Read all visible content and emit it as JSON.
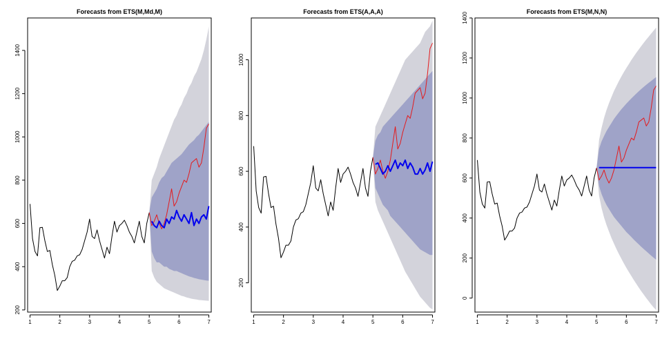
{
  "colors": {
    "history": "#000000",
    "actual": "#e41a1c",
    "forecast": "#0000ee",
    "band80": "#9fa3c8",
    "band95": "#d3d3db"
  },
  "chart_data": [
    {
      "type": "line",
      "title": "Forecasts from ETS(M,Md,M)",
      "xlim": [
        0.92,
        7.08
      ],
      "ylim": [
        190,
        1550
      ],
      "xticks": [
        1,
        2,
        3,
        4,
        5,
        6,
        7
      ],
      "yticks": [
        200,
        400,
        600,
        800,
        1000,
        1200,
        1400
      ],
      "grid": false,
      "legend": "none",
      "history": {
        "x": [
          1.0,
          1.0833,
          1.1667,
          1.25,
          1.3333,
          1.4167,
          1.5,
          1.5833,
          1.6667,
          1.75,
          1.8333,
          1.9167,
          2.0,
          2.0833,
          2.1667,
          2.25,
          2.3333,
          2.4167,
          2.5,
          2.5833,
          2.6667,
          2.75,
          2.8333,
          2.9167,
          3.0,
          3.0833,
          3.1667,
          3.25,
          3.3333,
          3.4167,
          3.5,
          3.5833,
          3.6667,
          3.75,
          3.8333,
          3.9167,
          4.0,
          4.0833,
          4.1667,
          4.25,
          4.3333,
          4.4167,
          4.5,
          4.5833,
          4.6667,
          4.75,
          4.8333,
          4.9167,
          5.0
        ],
        "y": [
          690,
          530,
          470,
          450,
          580,
          582,
          520,
          470,
          475,
          410,
          360,
          290,
          310,
          335,
          335,
          350,
          400,
          425,
          430,
          450,
          455,
          480,
          520,
          560,
          620,
          540,
          530,
          570,
          520,
          480,
          440,
          490,
          460,
          540,
          610,
          560,
          590,
          600,
          615,
          590,
          560,
          540,
          510,
          560,
          610,
          540,
          510,
          600,
          650
        ]
      },
      "actual": {
        "x": [
          5.0,
          5.0833,
          5.1667,
          5.25,
          5.3333,
          5.4167,
          5.5,
          5.5833,
          5.6667,
          5.75,
          5.8333,
          5.9167,
          6.0,
          6.0833,
          6.1667,
          6.25,
          6.3333,
          6.4167,
          6.5,
          6.5833,
          6.6667,
          6.75,
          6.8333,
          6.9167,
          7.0
        ],
        "y": [
          650,
          590,
          610,
          640,
          600,
          575,
          600,
          640,
          700,
          760,
          680,
          700,
          740,
          770,
          800,
          790,
          830,
          880,
          890,
          900,
          860,
          880,
          950,
          1040,
          1060
        ]
      },
      "forecast": {
        "x": [
          5.0833,
          5.1667,
          5.25,
          5.3333,
          5.4167,
          5.5,
          5.5833,
          5.6667,
          5.75,
          5.8333,
          5.9167,
          6.0,
          6.0833,
          6.1667,
          6.25,
          6.3333,
          6.4167,
          6.5,
          6.5833,
          6.6667,
          6.75,
          6.8333,
          6.9167,
          7.0
        ],
        "y": [
          610,
          590,
          580,
          610,
          590,
          580,
          620,
          600,
          630,
          620,
          660,
          630,
          610,
          640,
          620,
          600,
          650,
          590,
          620,
          600,
          630,
          640,
          620,
          680
        ],
        "lo80": [
          470,
          440,
          420,
          420,
          410,
          400,
          400,
          390,
          385,
          380,
          380,
          375,
          370,
          365,
          360,
          355,
          352,
          348,
          345,
          342,
          340,
          338,
          336,
          335
        ],
        "hi80": [
          720,
          740,
          760,
          790,
          810,
          820,
          840,
          860,
          880,
          890,
          900,
          910,
          920,
          935,
          950,
          965,
          975,
          985,
          1000,
          1010,
          1025,
          1040,
          1055,
          1070
        ],
        "lo95": [
          380,
          350,
          330,
          320,
          310,
          300,
          295,
          290,
          285,
          280,
          275,
          270,
          265,
          262,
          258,
          255,
          252,
          250,
          248,
          246,
          245,
          244,
          243,
          242
        ],
        "hi95": [
          800,
          830,
          860,
          900,
          930,
          960,
          990,
          1020,
          1050,
          1080,
          1100,
          1130,
          1150,
          1180,
          1200,
          1230,
          1250,
          1280,
          1300,
          1330,
          1360,
          1400,
          1450,
          1510
        ]
      }
    },
    {
      "type": "line",
      "title": "Forecasts from ETS(A,A,A)",
      "xlim": [
        0.92,
        7.08
      ],
      "ylim": [
        95,
        1150
      ],
      "xticks": [
        1,
        2,
        3,
        4,
        5,
        6,
        7
      ],
      "yticks": [
        200,
        400,
        600,
        800,
        1000
      ],
      "grid": false,
      "legend": "none",
      "history": {
        "x": [
          1.0,
          1.0833,
          1.1667,
          1.25,
          1.3333,
          1.4167,
          1.5,
          1.5833,
          1.6667,
          1.75,
          1.8333,
          1.9167,
          2.0,
          2.0833,
          2.1667,
          2.25,
          2.3333,
          2.4167,
          2.5,
          2.5833,
          2.6667,
          2.75,
          2.8333,
          2.9167,
          3.0,
          3.0833,
          3.1667,
          3.25,
          3.3333,
          3.4167,
          3.5,
          3.5833,
          3.6667,
          3.75,
          3.8333,
          3.9167,
          4.0,
          4.0833,
          4.1667,
          4.25,
          4.3333,
          4.4167,
          4.5,
          4.5833,
          4.6667,
          4.75,
          4.8333,
          4.9167,
          5.0
        ],
        "y": [
          690,
          530,
          470,
          450,
          580,
          582,
          520,
          470,
          475,
          410,
          360,
          290,
          310,
          335,
          335,
          350,
          400,
          425,
          430,
          450,
          455,
          480,
          520,
          560,
          620,
          540,
          530,
          570,
          520,
          480,
          440,
          490,
          460,
          540,
          610,
          560,
          590,
          600,
          615,
          590,
          560,
          540,
          510,
          560,
          610,
          540,
          510,
          600,
          650
        ]
      },
      "actual": {
        "x": [
          5.0,
          5.0833,
          5.1667,
          5.25,
          5.3333,
          5.4167,
          5.5,
          5.5833,
          5.6667,
          5.75,
          5.8333,
          5.9167,
          6.0,
          6.0833,
          6.1667,
          6.25,
          6.3333,
          6.4167,
          6.5,
          6.5833,
          6.6667,
          6.75,
          6.8333,
          6.9167,
          7.0
        ],
        "y": [
          650,
          590,
          610,
          640,
          600,
          575,
          600,
          640,
          700,
          760,
          680,
          700,
          740,
          770,
          800,
          790,
          830,
          880,
          890,
          900,
          860,
          880,
          950,
          1040,
          1060
        ]
      },
      "forecast": {
        "x": [
          5.0833,
          5.1667,
          5.25,
          5.3333,
          5.4167,
          5.5,
          5.5833,
          5.6667,
          5.75,
          5.8333,
          5.9167,
          6.0,
          6.0833,
          6.1667,
          6.25,
          6.3333,
          6.4167,
          6.5,
          6.5833,
          6.6667,
          6.75,
          6.8333,
          6.9167,
          7.0
        ],
        "y": [
          625,
          630,
          610,
          590,
          600,
          620,
          600,
          620,
          640,
          610,
          630,
          620,
          640,
          610,
          630,
          615,
          590,
          590,
          610,
          590,
          605,
          630,
          600,
          635
        ],
        "lo80": [
          540,
          520,
          500,
          480,
          470,
          460,
          440,
          430,
          420,
          410,
          400,
          390,
          380,
          370,
          360,
          350,
          340,
          330,
          320,
          315,
          310,
          305,
          300,
          300
        ],
        "hi80": [
          710,
          730,
          740,
          760,
          770,
          780,
          790,
          800,
          810,
          820,
          830,
          840,
          850,
          860,
          870,
          880,
          890,
          900,
          910,
          920,
          930,
          940,
          950,
          960
        ],
        "lo95": [
          490,
          460,
          440,
          420,
          400,
          380,
          360,
          340,
          320,
          300,
          280,
          260,
          240,
          225,
          210,
          195,
          180,
          165,
          150,
          140,
          130,
          120,
          110,
          105
        ],
        "hi95": [
          760,
          780,
          800,
          820,
          840,
          860,
          880,
          900,
          920,
          940,
          960,
          980,
          1000,
          1010,
          1020,
          1030,
          1040,
          1050,
          1060,
          1080,
          1100,
          1110,
          1120,
          1140
        ]
      }
    },
    {
      "type": "line",
      "title": "Forecasts from ETS(M,N,N)",
      "xlim": [
        0.92,
        7.08
      ],
      "ylim": [
        -70,
        1400
      ],
      "xticks": [
        1,
        2,
        3,
        4,
        5,
        6,
        7
      ],
      "yticks": [
        0,
        200,
        400,
        600,
        800,
        1000,
        1200,
        1400
      ],
      "grid": false,
      "legend": "none",
      "history": {
        "x": [
          1.0,
          1.0833,
          1.1667,
          1.25,
          1.3333,
          1.4167,
          1.5,
          1.5833,
          1.6667,
          1.75,
          1.8333,
          1.9167,
          2.0,
          2.0833,
          2.1667,
          2.25,
          2.3333,
          2.4167,
          2.5,
          2.5833,
          2.6667,
          2.75,
          2.8333,
          2.9167,
          3.0,
          3.0833,
          3.1667,
          3.25,
          3.3333,
          3.4167,
          3.5,
          3.5833,
          3.6667,
          3.75,
          3.8333,
          3.9167,
          4.0,
          4.0833,
          4.1667,
          4.25,
          4.3333,
          4.4167,
          4.5,
          4.5833,
          4.6667,
          4.75,
          4.8333,
          4.9167,
          5.0
        ],
        "y": [
          690,
          530,
          470,
          450,
          580,
          582,
          520,
          470,
          475,
          410,
          360,
          290,
          310,
          335,
          335,
          350,
          400,
          425,
          430,
          450,
          455,
          480,
          520,
          560,
          620,
          540,
          530,
          570,
          520,
          480,
          440,
          490,
          460,
          540,
          610,
          560,
          590,
          600,
          615,
          590,
          560,
          540,
          510,
          560,
          610,
          540,
          510,
          600,
          650
        ]
      },
      "actual": {
        "x": [
          5.0,
          5.0833,
          5.1667,
          5.25,
          5.3333,
          5.4167,
          5.5,
          5.5833,
          5.6667,
          5.75,
          5.8333,
          5.9167,
          6.0,
          6.0833,
          6.1667,
          6.25,
          6.3333,
          6.4167,
          6.5,
          6.5833,
          6.6667,
          6.75,
          6.8333,
          6.9167,
          7.0
        ],
        "y": [
          650,
          590,
          610,
          640,
          600,
          575,
          600,
          640,
          700,
          760,
          680,
          700,
          740,
          770,
          800,
          790,
          830,
          880,
          890,
          900,
          860,
          880,
          950,
          1040,
          1060
        ]
      },
      "forecast": {
        "x": [
          5.0833,
          5.1667,
          5.25,
          5.3333,
          5.4167,
          5.5,
          5.5833,
          5.6667,
          5.75,
          5.8333,
          5.9167,
          6.0,
          6.0833,
          6.1667,
          6.25,
          6.3333,
          6.4167,
          6.5,
          6.5833,
          6.6667,
          6.75,
          6.8333,
          6.9167,
          7.0
        ],
        "y": [
          652,
          652,
          652,
          652,
          652,
          652,
          652,
          652,
          652,
          652,
          652,
          652,
          652,
          652,
          652,
          652,
          652,
          652,
          652,
          652,
          652,
          652,
          652,
          652
        ],
        "lo80": [
          560,
          520,
          490,
          465,
          445,
          425,
          405,
          390,
          375,
          360,
          345,
          330,
          318,
          305,
          292,
          280,
          268,
          256,
          245,
          234,
          223,
          212,
          202,
          192
        ],
        "hi80": [
          745,
          783,
          810,
          835,
          855,
          875,
          895,
          912,
          928,
          944,
          958,
          972,
          985,
          998,
          1010,
          1022,
          1034,
          1045,
          1056,
          1066,
          1076,
          1085,
          1095,
          1105
        ],
        "lo95": [
          512,
          450,
          403,
          365,
          332,
          300,
          272,
          245,
          220,
          196,
          173,
          151,
          130,
          110,
          90,
          71,
          52,
          34,
          17,
          0,
          -16,
          -32,
          -47,
          -60
        ],
        "hi95": [
          790,
          850,
          900,
          940,
          975,
          1005,
          1035,
          1060,
          1085,
          1108,
          1130,
          1150,
          1170,
          1190,
          1208,
          1226,
          1243,
          1260,
          1276,
          1292,
          1307,
          1322,
          1337,
          1352
        ]
      }
    }
  ]
}
